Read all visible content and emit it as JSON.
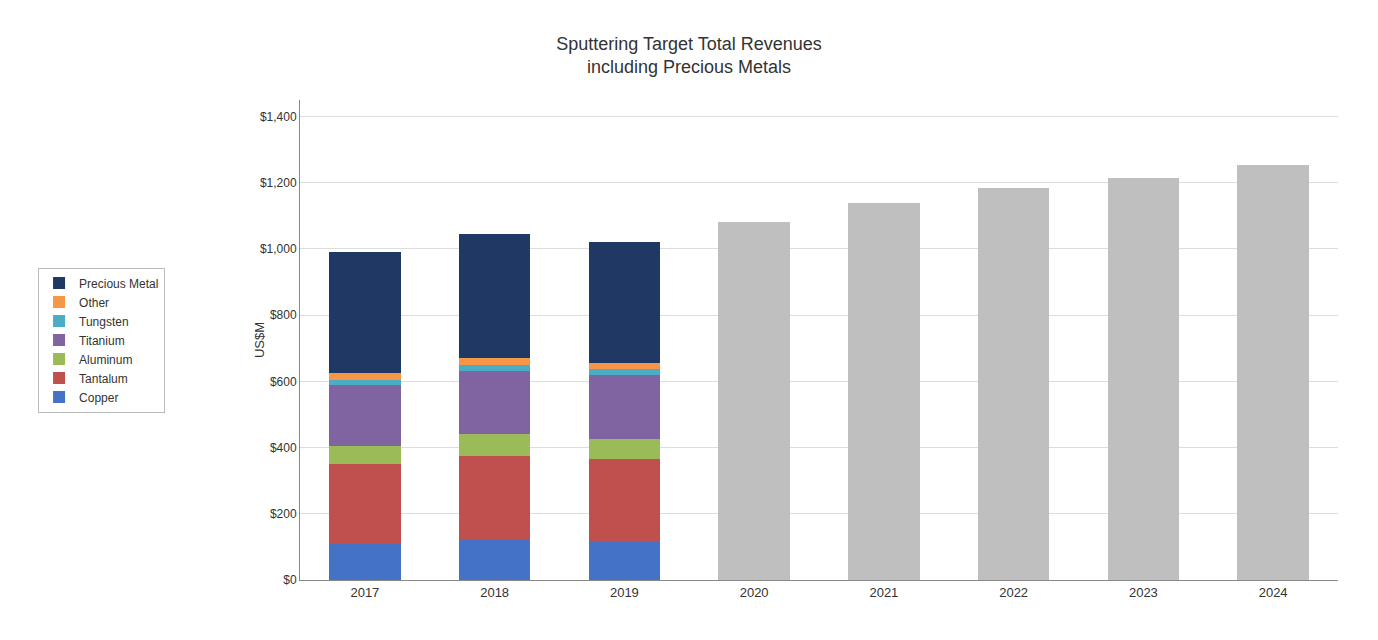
{
  "chart_data": {
    "type": "bar",
    "title": "Sputtering Target Total Revenues\nincluding Precious Metals",
    "ylabel": "US$M",
    "categories": [
      "2017",
      "2018",
      "2019",
      "2020",
      "2021",
      "2022",
      "2023",
      "2024"
    ],
    "series": [
      {
        "name": "Copper",
        "color": "#4472C4",
        "values": [
          110,
          120,
          115,
          0,
          0,
          0,
          0,
          0
        ]
      },
      {
        "name": "Tantalum",
        "color": "#C0504D",
        "values": [
          240,
          255,
          250,
          0,
          0,
          0,
          0,
          0
        ]
      },
      {
        "name": "Aluminum",
        "color": "#9BBB59",
        "values": [
          55,
          65,
          60,
          0,
          0,
          0,
          0,
          0
        ]
      },
      {
        "name": "Titanium",
        "color": "#8064A2",
        "values": [
          185,
          190,
          195,
          0,
          0,
          0,
          0,
          0
        ]
      },
      {
        "name": "Tungsten",
        "color": "#4BACC6",
        "values": [
          15,
          18,
          16,
          0,
          0,
          0,
          0,
          0
        ]
      },
      {
        "name": "Other",
        "color": "#F79646",
        "values": [
          20,
          22,
          20,
          0,
          0,
          0,
          0,
          0
        ]
      },
      {
        "name": "Precious Metal",
        "color": "#1F3864",
        "values": [
          365,
          375,
          365,
          0,
          0,
          0,
          0,
          0
        ]
      },
      {
        "color": "#BFBFBF",
        "values": [
          0,
          0,
          0,
          1080,
          1140,
          1185,
          1215,
          1255
        ]
      }
    ],
    "stacked": true,
    "ylim": [
      0,
      1450
    ],
    "yticks": [
      {
        "value": 0,
        "label": "$0"
      },
      {
        "value": 200,
        "label": "$200"
      },
      {
        "value": 400,
        "label": "$400"
      },
      {
        "value": 600,
        "label": "$600"
      },
      {
        "value": 800,
        "label": "$800"
      },
      {
        "value": 1000,
        "label": "$1,000"
      },
      {
        "value": 1200,
        "label": "$1,200"
      },
      {
        "value": 1400,
        "label": "$1,400"
      }
    ],
    "grid": true,
    "legend": "left"
  }
}
